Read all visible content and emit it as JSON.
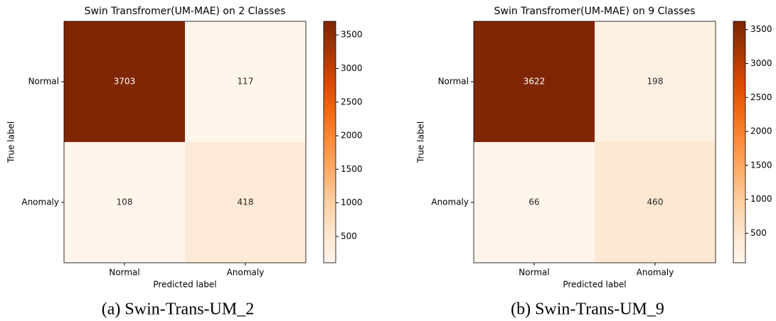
{
  "chart_data": [
    {
      "type": "heatmap",
      "title": "Swin Transfromer(UM-MAE) on 2 Classes",
      "xlabel": "Predicted label",
      "ylabel": "True label",
      "x_categories": [
        "Normal",
        "Anomaly"
      ],
      "y_categories": [
        "Normal",
        "Anomaly"
      ],
      "values": [
        [
          3703,
          117
        ],
        [
          108,
          418
        ]
      ],
      "colormap": "Oranges",
      "clim": [
        108,
        3703
      ],
      "cticks": [
        500,
        1000,
        1500,
        2000,
        2500,
        3000,
        3500
      ],
      "caption": "(a) Swin-Trans-UM_2"
    },
    {
      "type": "heatmap",
      "title": "Swin Transfromer(UM-MAE) on 9 Classes",
      "xlabel": "Predicted label",
      "ylabel": "True label",
      "x_categories": [
        "Normal",
        "Anomaly"
      ],
      "y_categories": [
        "Normal",
        "Anomaly"
      ],
      "values": [
        [
          3622,
          198
        ],
        [
          66,
          460
        ]
      ],
      "colormap": "Oranges",
      "clim": [
        66,
        3622
      ],
      "cticks": [
        500,
        1000,
        1500,
        2000,
        2500,
        3000,
        3500
      ],
      "caption": "(b) Swin-Trans-UM_9"
    }
  ]
}
